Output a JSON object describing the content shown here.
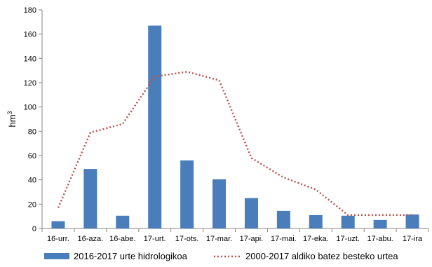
{
  "chart_data": {
    "type": "bar",
    "title": "",
    "xlabel": "",
    "ylabel": "hm",
    "ylabel_superscript": "3",
    "ylim": [
      0,
      180
    ],
    "yticks": [
      0,
      20,
      40,
      60,
      80,
      100,
      120,
      140,
      160,
      180
    ],
    "grid": false,
    "legend_position": "bottom",
    "categories": [
      "16-urr.",
      "16-aza.",
      "16-abe.",
      "17-urt.",
      "17-ots.",
      "17-mar.",
      "17-api.",
      "17-mai.",
      "17-eka.",
      "17-uzt.",
      "17-abu.",
      "17-ira"
    ],
    "series": [
      {
        "name": "2016-2017 urte hidrologikoa",
        "type": "bar",
        "color": "#4a7ebb",
        "values": [
          6,
          49,
          10.5,
          167,
          56,
          40.5,
          25,
          14.5,
          11,
          10.5,
          7,
          11.5
        ]
      },
      {
        "name": "2000-2017 aldiko batez besteko urtea",
        "type": "line",
        "style": "dotted",
        "color": "#c0504d",
        "values": [
          17,
          79,
          86,
          125,
          129,
          122,
          58,
          42,
          32,
          11,
          11,
          11
        ]
      }
    ]
  }
}
